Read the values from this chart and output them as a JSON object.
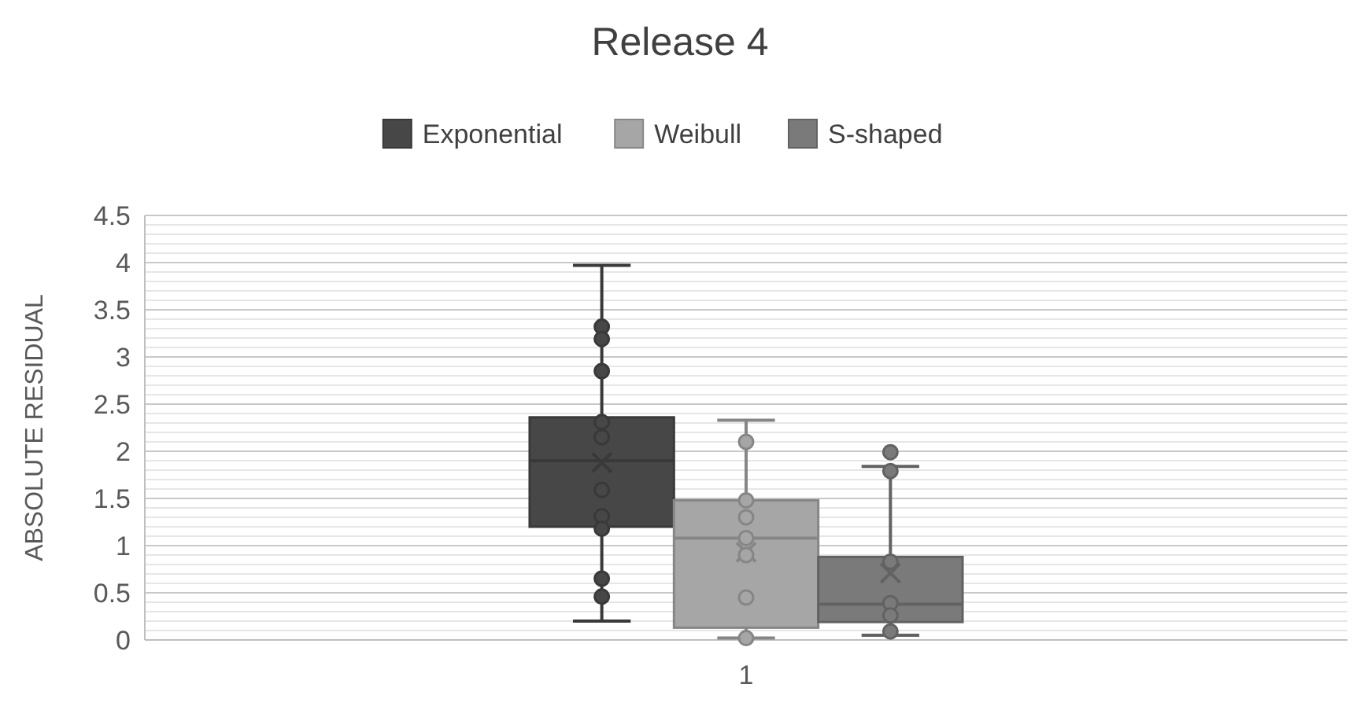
{
  "chart_data": {
    "type": "box",
    "title": "Release 4",
    "ylabel": "ABSOLUTE RESIDUAL",
    "categories": [
      "1"
    ],
    "ylim": [
      0,
      4.5
    ],
    "yticks": [
      0,
      0.5,
      1,
      1.5,
      2,
      2.5,
      3,
      3.5,
      4,
      4.5
    ],
    "grid": true,
    "legend": "top",
    "marker": "circle",
    "series": [
      {
        "name": "Exponential",
        "color": "#474747",
        "boxes": [
          {
            "low": 0.2,
            "q1": 1.2,
            "median": 1.9,
            "q3": 2.36,
            "high": 3.97,
            "mean": 1.88,
            "outliers": [
              3.32,
              3.19,
              2.85,
              2.31,
              2.15,
              1.59,
              1.31,
              1.18,
              0.65,
              0.46
            ]
          }
        ]
      },
      {
        "name": "Weibull",
        "color": "#a6a6a6",
        "boxes": [
          {
            "low": 0.02,
            "q1": 0.13,
            "median": 1.08,
            "q3": 1.48,
            "high": 2.33,
            "mean": 0.93,
            "outliers": [
              2.1,
              1.48,
              1.3,
              1.08,
              0.9,
              0.45,
              0.02
            ]
          }
        ]
      },
      {
        "name": "S-shaped",
        "color": "#7a7a7a",
        "boxes": [
          {
            "low": 0.05,
            "q1": 0.19,
            "median": 0.38,
            "q3": 0.88,
            "high": 1.84,
            "mean": 0.71,
            "outliers": [
              1.99,
              1.79,
              0.83,
              0.39,
              0.26,
              0.09
            ]
          }
        ]
      }
    ]
  }
}
